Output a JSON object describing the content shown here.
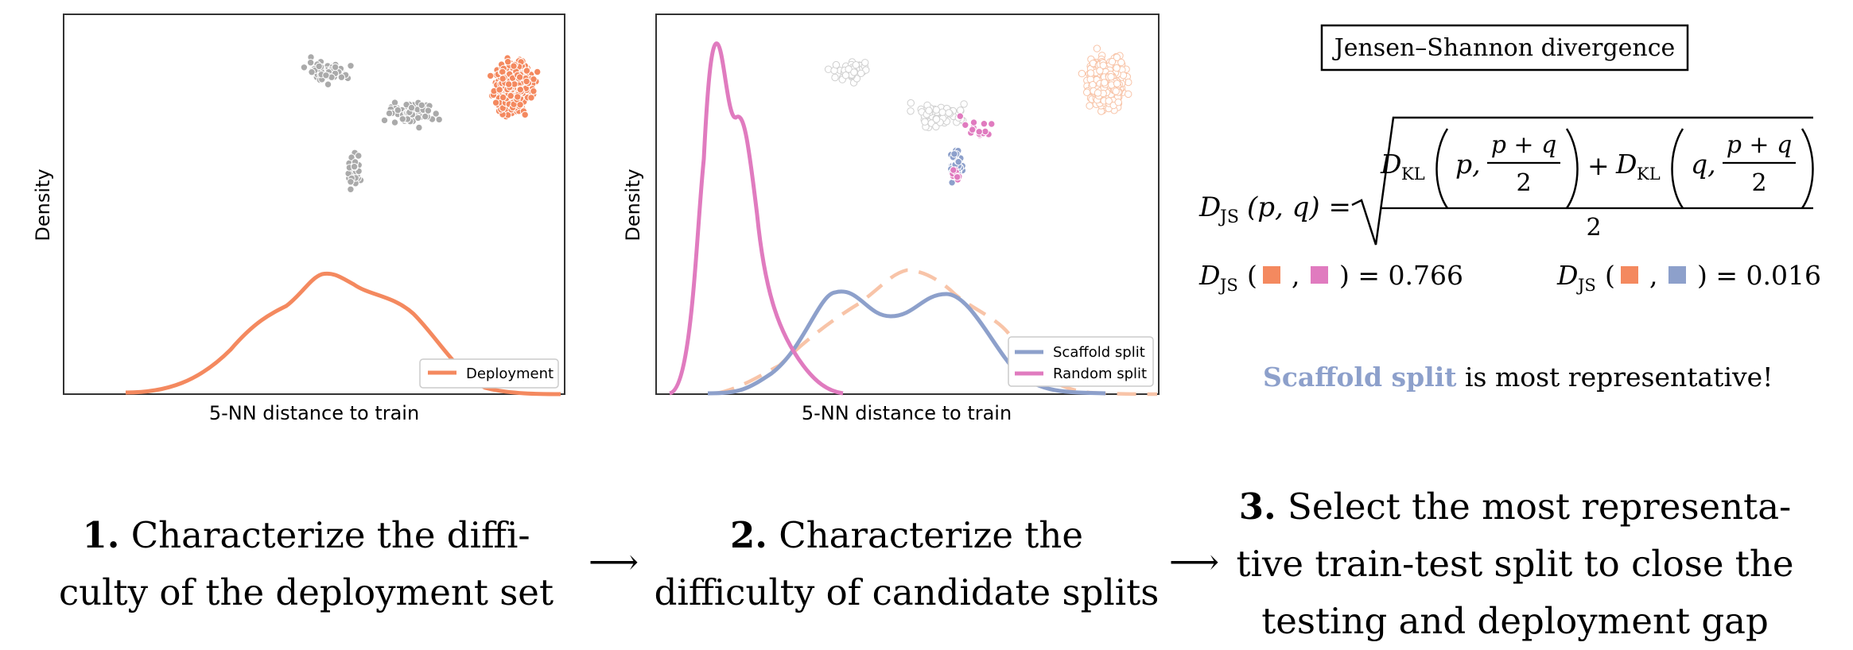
{
  "panel1": {
    "xlabel": "5-NN distance to train",
    "ylabel": "Density",
    "legend": [
      "Deployment"
    ]
  },
  "panel2": {
    "xlabel": "5-NN distance to train",
    "ylabel": "Density",
    "legend": [
      "Scaffold split",
      "Random split"
    ]
  },
  "panel3": {
    "box_title": "Jensen–Shannon divergence",
    "formula": {
      "lhs": "D",
      "lhs_sub": "JS",
      "args": "(p, q) =",
      "term_kl": "D",
      "term_kl_sub": "KL",
      "p_arg": "p,",
      "q_arg": "q,",
      "frac_num": "p + q",
      "frac_den": "2",
      "plus": "+",
      "outer_den": "2"
    },
    "score1": {
      "prefix": "D",
      "sub": "JS",
      "value": ") = 0.766"
    },
    "score2": {
      "prefix": "D",
      "sub": "JS",
      "value": ") = 0.016"
    },
    "conclusion_highlight": "Scaffold split",
    "conclusion_rest": " is most representative!"
  },
  "steps": [
    {
      "num": "1.",
      "text_line1": "Characterize the diffi-",
      "text_line2": "culty of the deployment set"
    },
    {
      "num": "2.",
      "text_line1": "Characterize the",
      "text_line2": "difficulty of candidate splits"
    },
    {
      "num": "3.",
      "text_line1": "Select the most representa-",
      "text_line2": "tive train-test split to close the",
      "text_line3": "testing and deployment gap"
    }
  ],
  "arrow_glyph": "⟶",
  "colors": {
    "deployment": "#f4895f",
    "scaffold": "#8da0cb",
    "random": "#e07bbf",
    "gray_points": "#aaaaaa"
  },
  "chart_data": [
    {
      "type": "line",
      "xlabel": "5-NN distance to train",
      "ylabel": "Density",
      "series": [
        {
          "name": "Deployment",
          "x": [
            0.0,
            0.1,
            0.2,
            0.3,
            0.4,
            0.5,
            0.6,
            0.7,
            0.8,
            0.9,
            1.0
          ],
          "y": [
            0.0,
            0.02,
            0.15,
            0.45,
            0.55,
            0.45,
            0.35,
            0.15,
            0.02,
            0.0,
            0.0
          ]
        }
      ]
    },
    {
      "type": "line",
      "xlabel": "5-NN distance to train",
      "ylabel": "Density",
      "series": [
        {
          "name": "Scaffold split",
          "x": [
            0.0,
            0.1,
            0.2,
            0.3,
            0.4,
            0.5,
            0.6,
            0.7,
            0.8,
            0.9,
            1.0
          ],
          "y": [
            0.0,
            0.0,
            0.02,
            0.25,
            0.3,
            0.25,
            0.28,
            0.1,
            0.0,
            0.0,
            0.0
          ]
        },
        {
          "name": "Random split",
          "x": [
            0.0,
            0.05,
            0.1,
            0.15,
            0.2,
            0.25,
            0.3,
            0.35,
            0.4,
            0.5,
            0.6
          ],
          "y": [
            0.0,
            0.2,
            1.0,
            0.8,
            0.2,
            0.02,
            0.0,
            0.0,
            0.0,
            0.0,
            0.0
          ]
        }
      ]
    }
  ]
}
